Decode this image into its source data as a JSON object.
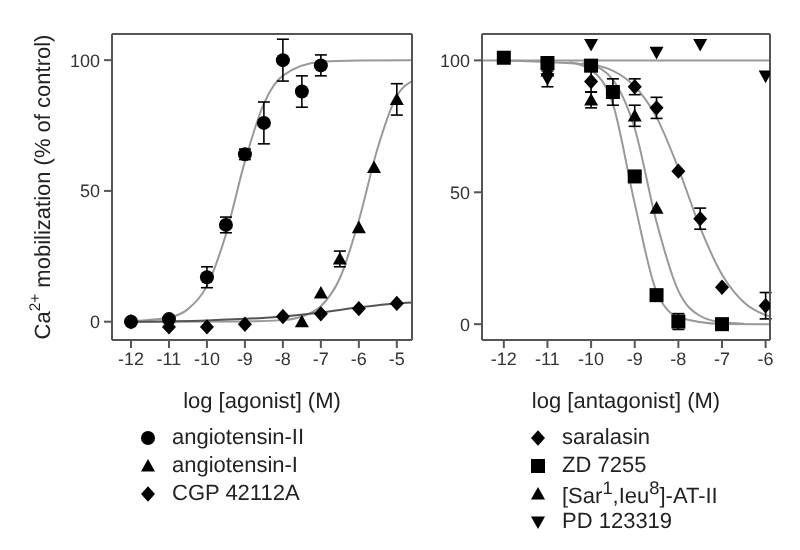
{
  "chart_data": [
    {
      "type": "scatter",
      "xlabel": "log [agonist] (M)",
      "ylabel": "Ca$^{2+}$ mobilization (% of control)",
      "xlim": [
        -12.5,
        -4.6
      ],
      "ylim": [
        -7,
        110
      ],
      "xticks": [
        -12,
        -11,
        -10,
        -9,
        -8,
        -7,
        -6,
        -5
      ],
      "yticks": [
        0,
        50,
        100
      ],
      "legend": "bottom",
      "series": [
        {
          "type": "line",
          "color": "#999999",
          "x": [
            -12,
            -11,
            -10.5,
            -10,
            -9.5,
            -9,
            -8.5,
            -8,
            -7,
            -6,
            -4.6
          ],
          "values": [
            0.2,
            1.6,
            4.8,
            13.7,
            33.4,
            61.3,
            83.4,
            94.1,
            99.4,
            99.9,
            100
          ]
        },
        {
          "type": "line",
          "color": "#999999",
          "x": [
            -12,
            -9,
            -8,
            -7.5,
            -7,
            -6.5,
            -6,
            -5.5,
            -5,
            -4.6
          ],
          "values": [
            0,
            0.1,
            0.6,
            2,
            5.9,
            16.6,
            38.7,
            66.6,
            86.3,
            92
          ]
        },
        {
          "type": "line",
          "color": "#555555",
          "x": [
            -12,
            -10,
            -8,
            -7,
            -6,
            -5,
            -4.6
          ],
          "values": [
            0,
            0.5,
            2,
            3.5,
            5.5,
            7,
            7.3
          ]
        },
        {
          "name": "angiotensin-II",
          "marker": "circle",
          "color": "#000000",
          "x": [
            -12,
            -11,
            -10,
            -9.5,
            -9,
            -8.5,
            -8,
            -7.5,
            -7
          ],
          "values": [
            0,
            1,
            17,
            37,
            64,
            76,
            100,
            88,
            98
          ],
          "errors": [
            null,
            null,
            4,
            3,
            2,
            8,
            8,
            6,
            4
          ]
        },
        {
          "name": "angiotensin-I",
          "marker": "triangle",
          "color": "#000000",
          "x": [
            -7.5,
            -7,
            -6.5,
            -6,
            -5.6,
            -5
          ],
          "values": [
            0,
            11,
            24,
            36,
            59,
            85
          ],
          "errors": [
            null,
            null,
            3,
            null,
            null,
            6
          ]
        },
        {
          "name": "CGP 42112A",
          "marker": "diamond",
          "color": "#000000",
          "x": [
            -12,
            -11,
            -10,
            -9,
            -8,
            -7,
            -6,
            -5
          ],
          "values": [
            0,
            -2,
            -2,
            -1,
            2,
            3,
            5,
            7
          ]
        }
      ]
    },
    {
      "type": "scatter",
      "xlabel": "log [antagonist] (M)",
      "xlim": [
        -12.5,
        -5.9
      ],
      "ylim": [
        -6,
        110
      ],
      "xticks": [
        -12,
        -11,
        -10,
        -9,
        -8,
        -7,
        -6
      ],
      "yticks": [
        0,
        50,
        100
      ],
      "legend": "bottom",
      "series": [
        {
          "type": "line",
          "color": "#999999",
          "x": [
            -12.5,
            -5.9
          ],
          "values": [
            100,
            100
          ]
        },
        {
          "type": "line",
          "color": "#999999",
          "x": [
            -12,
            -10,
            -9,
            -8.5,
            -8,
            -7.5,
            -7,
            -6.5,
            -6,
            -5.9
          ],
          "values": [
            99.9,
            98.3,
            90.1,
            78.4,
            59.1,
            36.6,
            18.8,
            8.3,
            3.5,
            3
          ]
        },
        {
          "type": "line",
          "color": "#999999",
          "x": [
            -10.5,
            -10,
            -9.5,
            -9,
            -8.5,
            -8,
            -7,
            -5.9
          ],
          "values": [
            99.4,
            96.4,
            83.4,
            45.7,
            12.3,
            2.6,
            0.1,
            0
          ]
        },
        {
          "type": "line",
          "color": "#999999",
          "x": [
            -10.2,
            -10,
            -9.5,
            -9,
            -8.5,
            -8,
            -7.5,
            -7,
            -6.5
          ],
          "values": [
            99,
            98.3,
            92.6,
            74.2,
            38.7,
            12.6,
            3.1,
            0.7,
            0.2
          ]
        },
        {
          "name": "saralasin",
          "marker": "diamond",
          "color": "#000000",
          "x": [
            -10,
            -9,
            -8.5,
            -8,
            -7.5,
            -7,
            -6
          ],
          "values": [
            92,
            90,
            82,
            58,
            40,
            14,
            7
          ],
          "errors": [
            4,
            3,
            4,
            null,
            4,
            null,
            5
          ]
        },
        {
          "name": "ZD 7255",
          "marker": "square",
          "color": "#000000",
          "x": [
            -12,
            -11,
            -10,
            -9.5,
            -9,
            -8.5,
            -8,
            -7
          ],
          "values": [
            101,
            99,
            98,
            88,
            56,
            11,
            1,
            0
          ],
          "errors": [
            null,
            null,
            null,
            5,
            null,
            null,
            3,
            null
          ]
        },
        {
          "name": "[Sar$^{1}$,Ieu$^{8}$]-AT-II",
          "marker": "triangle",
          "color": "#000000",
          "x": [
            -11,
            -10,
            -9,
            -8.5
          ],
          "values": [
            96,
            85,
            79,
            44
          ],
          "errors": [
            null,
            3,
            4,
            null
          ]
        },
        {
          "name": "PD 123319",
          "marker": "triangle-down",
          "color": "#000000",
          "x": [
            -11,
            -10,
            -8.5,
            -7.5,
            -6
          ],
          "values": [
            93,
            106,
            103,
            106,
            94
          ],
          "errors": [
            3,
            null,
            null,
            null,
            null
          ]
        }
      ]
    }
  ]
}
